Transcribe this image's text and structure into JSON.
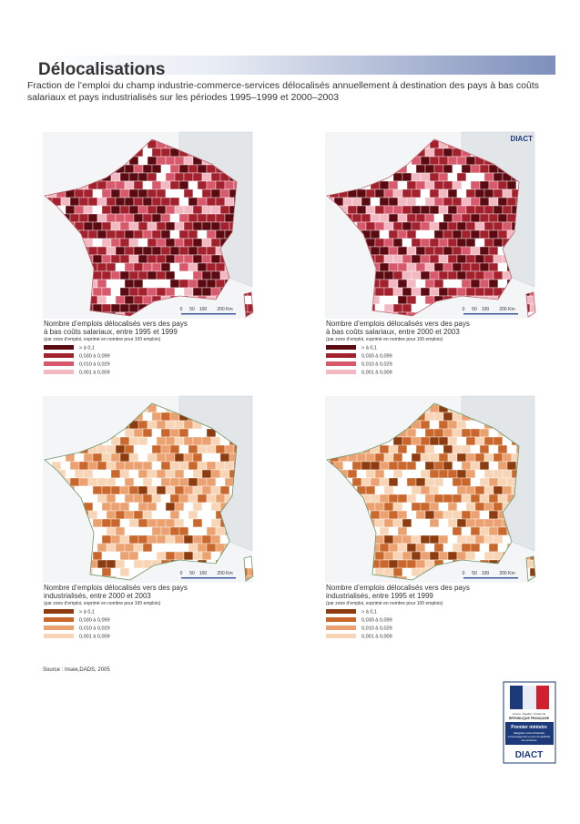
{
  "header": {
    "title": "Délocalisations",
    "subtitle": [
      "Fraction de l’emploi du champ industrie-commerce-services délocalisés annuellement à destination des pays à bas coûts",
      "salariaux et pays industrialisés sur les périodes 1995–1999 et 2000–2003"
    ]
  },
  "maps": [
    {
      "legend": {
        "title": [
          "Nombre d’emplois délocalisés vers des pays",
          "à bas coûts salariaux, entre 1995 et 1999"
        ],
        "note": "(par zone d’emploi, exprimé en nombre pour 100 emplois)",
        "items": [
          "> à 0,1",
          "0,030 à 0,099",
          "0,010 à 0,029",
          "0,001 à 0,009"
        ]
      },
      "scale": [
        "0",
        "50",
        "100",
        "200 Km"
      ]
    },
    {
      "badge": "DIACT",
      "legend": {
        "title": [
          "Nombre d’emplois délocalisés vers des pays",
          "à bas coûts salariaux, entre 2000 et 2003"
        ],
        "note": "(par zone d’emploi, exprimé en nombre pour 100 emplois)",
        "items": [
          "> à 0,1",
          "0,030 à 0,099",
          "0,010 à 0,029",
          "0,001 à 0,009"
        ]
      },
      "scale": [
        "0",
        "50",
        "100",
        "200 Km"
      ]
    },
    {
      "legend": {
        "title": [
          "Nombre d’emplois délocalisés vers des pays",
          "industrialisés, entre 2000 et 2003"
        ],
        "note": "(par zone d’emploi, exprimé en nombre pour 100 emplois)",
        "items": [
          "> à 0,1",
          "0,030 à 0,099",
          "0,010 à 0,029",
          "0,001 à 0,009"
        ]
      },
      "scale": [
        "0",
        "50",
        "100",
        "200 Km"
      ]
    },
    {
      "legend": {
        "title": [
          "Nombre d’emplois délocalisés vers des pays",
          "industrialisés, entre 1995 et 1999"
        ],
        "note": "(par zone d’emploi, exprimé en nombre pour 100 emplois)",
        "items": [
          "> à 0,1",
          "0,030 à 0,099",
          "0,010 à 0,029",
          "0,001 à 0,009"
        ]
      },
      "scale": [
        "0",
        "50",
        "100",
        "200 Km"
      ]
    }
  ],
  "source": "Source : Insee,DADS, 2005",
  "logo": {
    "motto": "Liberté • Égalité • Fraternité",
    "republic": "RÉPUBLIQUE FRANÇAISE",
    "office": "Premier ministre",
    "agency": [
      "Délégation interministérielle",
      "à l’aménagement et à la compétitivité",
      "des territoires"
    ],
    "name": "DIACT"
  }
}
